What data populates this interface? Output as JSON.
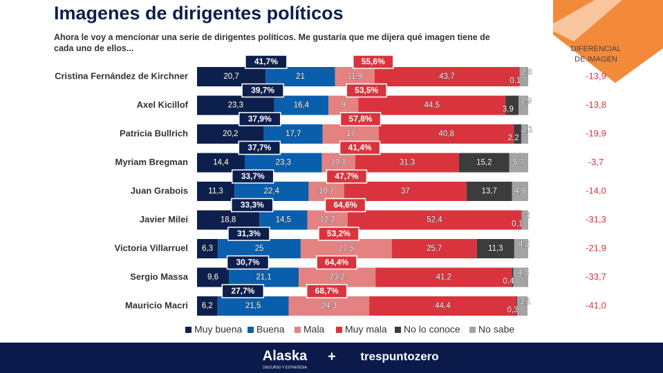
{
  "chart_data": {
    "type": "bar",
    "orientation": "horizontal",
    "stacked": true,
    "title": "Imagenes de dirigentes políticos",
    "subtitle": "Ahora le voy a mencionar una serie de dirigentes políticos. Me gustaría que me dijera qué imagen tiene de cada uno de ellos...",
    "categories": [
      "Cristina Fernández de Kirchner",
      "Axel Kicillof",
      "Patricia Bullrich",
      "Myriam Bregman",
      "Juan Grabois",
      "Javier Milei",
      "Victoria Villarruel",
      "Sergio Massa",
      "Mauricio Macri"
    ],
    "xlim": [
      0,
      100
    ],
    "series": [
      {
        "name": "Muy buena",
        "color": "#0d1f4d",
        "values": [
          20.7,
          23.3,
          20.2,
          14.4,
          11.3,
          18.8,
          6.3,
          9.6,
          6.2
        ],
        "value_labels": [
          "20,7",
          "23,3",
          "20,2",
          "14,4",
          "11,3",
          "18,8",
          "6,3",
          "9,6",
          "6,2"
        ]
      },
      {
        "name": "Buena",
        "color": "#0a5fad",
        "values": [
          21,
          16.4,
          17.7,
          23.3,
          22.4,
          14.5,
          25,
          21.1,
          21.5
        ],
        "value_labels": [
          "21",
          "16,4",
          "17,7",
          "23,3",
          "22,4",
          "14,5",
          "25",
          "21,1",
          "21,5"
        ]
      },
      {
        "name": "Mala",
        "color": "#e48282",
        "values": [
          11.9,
          9,
          17,
          10.1,
          10.7,
          12.2,
          27.5,
          23.2,
          24.3
        ],
        "value_labels": [
          "11,9",
          "9",
          "17",
          "10,1",
          "10,7",
          "12,2",
          "27,5",
          "23,2",
          "24,3"
        ]
      },
      {
        "name": "Muy mala",
        "color": "#d9343d",
        "values": [
          43.7,
          44.5,
          40.8,
          31.3,
          37,
          52.4,
          25.7,
          41.2,
          44.4
        ],
        "value_labels": [
          "43,7",
          "44,5",
          "40,8",
          "31,3",
          "37",
          "52,4",
          "25,7",
          "41,2",
          "44,4"
        ]
      },
      {
        "name": "No lo conoce",
        "color": "#3c3c3c",
        "values": [
          0.1,
          3.9,
          2.2,
          15.2,
          13.7,
          0.1,
          11.3,
          0.4,
          0.3
        ],
        "value_labels": [
          "0,1",
          "3,9",
          "2,2",
          "15,2",
          "13,7",
          "0,1",
          "11,3",
          "0,4",
          "0,3"
        ]
      },
      {
        "name": "No sabe",
        "color": "#a3a3a3",
        "values": [
          2.6,
          2.9,
          2.1,
          5.7,
          4.9,
          2,
          4.2,
          4.5,
          3.1
        ],
        "value_labels": [
          "2,6",
          "2,9",
          "2,1",
          "5,7",
          "4,9",
          "2",
          "4,2",
          "4,5",
          "3,1"
        ]
      }
    ],
    "positive_totals": {
      "color": "#0d1f4d",
      "values": [
        41.7,
        39.7,
        37.9,
        37.7,
        33.7,
        33.3,
        31.3,
        30.7,
        27.7
      ],
      "value_labels": [
        "41,7%",
        "39,7%",
        "37,9%",
        "37,7%",
        "33,7%",
        "33,3%",
        "31,3%",
        "30,7%",
        "27,7%"
      ]
    },
    "negative_totals": {
      "color": "#d9343d",
      "values": [
        55.6,
        53.5,
        57.8,
        41.4,
        47.7,
        64.6,
        53.2,
        64.4,
        68.7
      ],
      "value_labels": [
        "55,6%",
        "53,5%",
        "57,8%",
        "41,4%",
        "47,7%",
        "64,6%",
        "53,2%",
        "64,4%",
        "68,7%"
      ]
    },
    "differential": {
      "title_lines": [
        "DIFERENCIAL",
        "DE IMAGEN"
      ],
      "color": "#d9343d",
      "values": [
        -13.9,
        -13.8,
        -19.9,
        -3.7,
        -14.0,
        -31.3,
        -21.9,
        -33.7,
        -41.0
      ],
      "value_labels": [
        "-13,9",
        "-13,8",
        "-19,9",
        "-3,7",
        "-14,0",
        "-31,3",
        "-21,9",
        "-33,7",
        "-41,0"
      ]
    }
  },
  "footer": {
    "brand": "Alaska",
    "brand_tagline": "DISCURSO Y ESTRATEGIA",
    "separator": "+",
    "partner": "trespuntozero"
  }
}
